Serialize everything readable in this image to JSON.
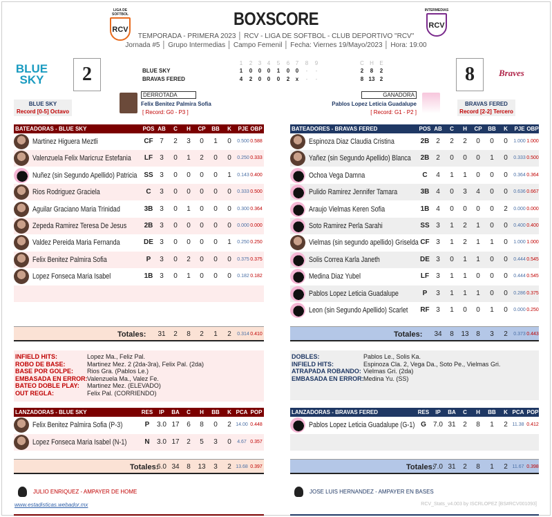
{
  "header": {
    "title": "BOXSCORE",
    "line1": "TEMPORADA - PRIMERA 2023 │ RCV - LIGA DE SOFTBOL - CLUB DEPORTIVO \"RCV\"",
    "line2": "Jornada #5 │ Grupo Intermedias │ Campo Femenil │ Fecha: Viernes 19/Mayo/2023 │ Hora: 19:00",
    "logo_left_caption": "LIGA DE SOFTBOL",
    "logo_left_text": "RCV",
    "logo_right_caption": "INTERMEDIAS",
    "logo_right_text": "RCV"
  },
  "colors": {
    "home_header": "#7b0000",
    "away_header": "#1f3864",
    "home_alt": "#fdecec",
    "away_alt": "#eeeeee",
    "home_total": "#fbe2d5",
    "away_total": "#b4c7e7"
  },
  "teams": {
    "home": {
      "logo_text": "BLUE SKY",
      "score": "2",
      "name": "BLUE SKY",
      "record": "Record  [0-5] Octavo"
    },
    "away": {
      "logo_text": "Braves",
      "score": "8",
      "name": "BRAVAS FERED",
      "record": "Record  [2-2] Tercero"
    }
  },
  "linescore": {
    "innings": [
      "1",
      "2",
      "3",
      "4",
      "5",
      "6",
      "7",
      "8",
      "9"
    ],
    "che": [
      "C",
      "H",
      "E"
    ],
    "rows": [
      {
        "team": "BLUE SKY",
        "runs": [
          "1",
          "0",
          "0",
          "0",
          "1",
          "0",
          "0",
          "-",
          "-"
        ],
        "totals": [
          "2",
          "8",
          "2"
        ]
      },
      {
        "team": "BRAVAS FERED",
        "runs": [
          "4",
          "2",
          "0",
          "0",
          "0",
          "2",
          "x",
          "-",
          "-"
        ],
        "totals": [
          "8",
          "13",
          "2"
        ]
      }
    ]
  },
  "decision": {
    "loser_label": "DERROTADA",
    "loser_name": "Felix Benitez Palmira Sofia",
    "loser_record": "[ Record: G0 - P3 ]",
    "winner_label": "GANADORA",
    "winner_name": "Pablos Lopez Leticia Guadalupe",
    "winner_record": "[ Record: G1 - P2 ]"
  },
  "batting": {
    "columns": [
      "POS",
      "AB",
      "C",
      "H",
      "CP",
      "BB",
      "K",
      "PJE",
      "OBP"
    ],
    "home": {
      "title": "BATEADORAS - BLUE SKY",
      "rows": [
        [
          "Martinez Higuera Meztli",
          "CF",
          "7",
          "2",
          "3",
          "0",
          "1",
          "0",
          "0.500",
          "0.588",
          "real"
        ],
        [
          "Valenzuela Felix Maricruz Estefania",
          "LF",
          "3",
          "0",
          "1",
          "2",
          "0",
          "0",
          "0.250",
          "0.333",
          "real"
        ],
        [
          "Nuñez (sin Segundo Apellido) Patricia",
          "SS",
          "3",
          "0",
          "0",
          "0",
          "0",
          "1",
          "0.143",
          "0.400",
          "sil"
        ],
        [
          "Rios Rodriguez Graciela",
          "C",
          "3",
          "0",
          "0",
          "0",
          "0",
          "0",
          "0.333",
          "0.500",
          "real"
        ],
        [
          "Aguilar Graciano Maria Trinidad",
          "3B",
          "3",
          "0",
          "1",
          "0",
          "0",
          "0",
          "0.300",
          "0.364",
          "real"
        ],
        [
          "Zepeda Ramirez Teresa De Jesus",
          "2B",
          "3",
          "0",
          "0",
          "0",
          "0",
          "0",
          "0.000",
          "0.000",
          "real"
        ],
        [
          "Valdez Pereida Maria Fernanda",
          "DE",
          "3",
          "0",
          "0",
          "0",
          "0",
          "1",
          "0.250",
          "0.250",
          "real"
        ],
        [
          "Felix Benitez Palmira Sofia",
          "P",
          "3",
          "0",
          "2",
          "0",
          "0",
          "0",
          "0.375",
          "0.375",
          "real"
        ],
        [
          "Lopez Fonseca Maria Isabel",
          "1B",
          "3",
          "0",
          "1",
          "0",
          "0",
          "0",
          "0.182",
          "0.182",
          "real"
        ]
      ],
      "totals_label": "Totales:",
      "totals": [
        "31",
        "2",
        "8",
        "2",
        "1",
        "2",
        "0.314",
        "0.410"
      ]
    },
    "away": {
      "title": "BATEADORES - BRAVAS FERED",
      "rows": [
        [
          "Espinoza Diaz  Claudia Cristina",
          "2B",
          "2",
          "2",
          "2",
          "0",
          "0",
          "0",
          "1.000",
          "1.000",
          "real"
        ],
        [
          "Yañez (sin Segundo Apellido) Blanca",
          "2B",
          "2",
          "0",
          "0",
          "0",
          "1",
          "0",
          "0.333",
          "0.500",
          "real"
        ],
        [
          "Ochoa Vega Damna",
          "C",
          "4",
          "1",
          "1",
          "0",
          "0",
          "0",
          "0.364",
          "0.364",
          "sil"
        ],
        [
          "Pulido Ramirez Jennifer Tamara",
          "3B",
          "4",
          "0",
          "3",
          "4",
          "0",
          "0",
          "0.636",
          "0.667",
          "sil"
        ],
        [
          "Araujo Vielmas Keren Sofia",
          "1B",
          "4",
          "0",
          "0",
          "0",
          "0",
          "2",
          "0.000",
          "0.000",
          "sil"
        ],
        [
          "Soto Ramirez Perla Sarahi",
          "SS",
          "3",
          "1",
          "2",
          "1",
          "0",
          "0",
          "0.400",
          "0.400",
          "sil"
        ],
        [
          "Vielmas (sin segundo apellido) Griselda",
          "CF",
          "3",
          "1",
          "2",
          "1",
          "1",
          "0",
          "1.000",
          "1.000",
          "real"
        ],
        [
          "Solis Correa Karla Janeth",
          "DE",
          "3",
          "0",
          "1",
          "1",
          "0",
          "0",
          "0.444",
          "0.545",
          "sil"
        ],
        [
          "Medina Diaz Yubel",
          "LF",
          "3",
          "1",
          "1",
          "0",
          "0",
          "0",
          "0.444",
          "0.545",
          "sil"
        ],
        [
          "Pablos Lopez Leticia Guadalupe",
          "P",
          "3",
          "1",
          "1",
          "1",
          "0",
          "0",
          "0.286",
          "0.375",
          "sil"
        ],
        [
          "Leon (sin Segundo Apellido) Scarlet",
          "RF",
          "3",
          "1",
          "0",
          "0",
          "1",
          "0",
          "0.000",
          "0.250",
          "sil"
        ]
      ],
      "totals_label": "Totales:",
      "totals": [
        "34",
        "8",
        "13",
        "8",
        "3",
        "2",
        "0.373",
        "0.443"
      ]
    }
  },
  "notes": {
    "home": [
      [
        "INFIELD HITS:",
        "Lopez Ma., Feliz Pal."
      ],
      [
        "ROBO DE BASE:",
        "Martinez Mez. 2 (2da-3ra), Felix Pal. (2da)"
      ],
      [
        "BASE POR GOLPE:",
        "Rios Gra. (Pablos Le.)"
      ],
      [
        "EMBASADA EN ERROR:",
        "Valenzuela Ma., Valez Fe."
      ],
      [
        "BATEO DOBLE PLAY:",
        "Martinez Mez. (ELEVADO)"
      ],
      [
        "OUT REGLA:",
        "Felix Pal. (CORRIENDO)"
      ]
    ],
    "away": [
      [
        "DOBLES:",
        "Pablos Le., Solis Ka."
      ],
      [
        "INFIELD HITS:",
        "Espinoza Cla. 2, Vega Da., Soto Pe., Vielmas Gri."
      ],
      [
        "ATRAPADA ROBANDO:",
        "Vielmas Gri. (2da)"
      ],
      [
        "EMBASADA EN ERROR:",
        "Medina Yu. (SS)"
      ]
    ]
  },
  "pitching": {
    "columns": [
      "RES",
      "IP",
      "BA",
      "C",
      "H",
      "BB",
      "K",
      "PCA",
      "POP"
    ],
    "home": {
      "title": "LANZADORAS - BLUE SKY",
      "rows": [
        [
          "Felix Benitez Palmira Sofia (P-3)",
          "P",
          "3.0",
          "17",
          "6",
          "8",
          "0",
          "2",
          "14.00",
          "0.448",
          "real"
        ],
        [
          "Lopez Fonseca Maria Isabel (N-1)",
          "N",
          "3.0",
          "17",
          "2",
          "5",
          "3",
          "0",
          "4.67",
          "0.357",
          "real"
        ]
      ],
      "totals_label": "Totales:",
      "totals": [
        "6.0",
        "34",
        "8",
        "13",
        "3",
        "2",
        "13.68",
        "0.397"
      ]
    },
    "away": {
      "title": "LANZADORAS - BRAVAS FERED",
      "rows": [
        [
          "Pablos Lopez Leticia Guadalupe (G-1)",
          "G",
          "7.0",
          "31",
          "2",
          "8",
          "1",
          "2",
          "11.38",
          "0.412",
          "sil"
        ]
      ],
      "totals_label": "Totales:",
      "totals": [
        "7.0",
        "31",
        "2",
        "8",
        "1",
        "2",
        "11.67",
        "0.398"
      ]
    }
  },
  "footer": {
    "umpire_home": "JULIO ENRIQUEZ - AMPAYER DE HOME",
    "umpire_bases": "JOSE LUIS HERNANDEZ - AMPAYER EN BASES",
    "website": "www.estadisticas.webador.mx",
    "credit": "RCV_Stats_v4.003 by ISCRLOPEZ [BS#RCV001093]"
  }
}
